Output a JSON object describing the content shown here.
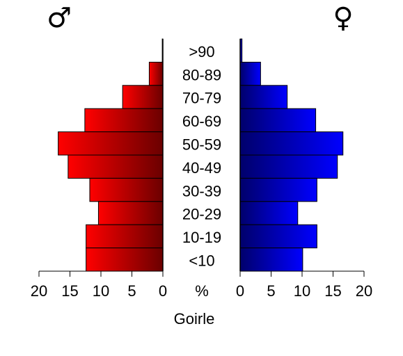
{
  "chart_data": {
    "type": "pyramid",
    "xlabel": "Goirle",
    "unit": "%",
    "categories": [
      ">90",
      "80-89",
      "70-79",
      "60-69",
      "50-59",
      "40-49",
      "30-39",
      "20-29",
      "10-19",
      "<10"
    ],
    "series": [
      {
        "name": "♂",
        "color": "#ff0000",
        "values": [
          0.1,
          2.2,
          6.5,
          12.6,
          16.9,
          15.3,
          11.8,
          10.4,
          12.4,
          12.4
        ]
      },
      {
        "name": "♀",
        "color": "#0000ff",
        "values": [
          0.3,
          3.3,
          7.6,
          12.2,
          16.6,
          15.7,
          12.4,
          9.3,
          12.4,
          10.1
        ]
      }
    ],
    "xlim": [
      0,
      20
    ],
    "xticks": [
      0,
      5,
      10,
      15,
      20
    ]
  }
}
